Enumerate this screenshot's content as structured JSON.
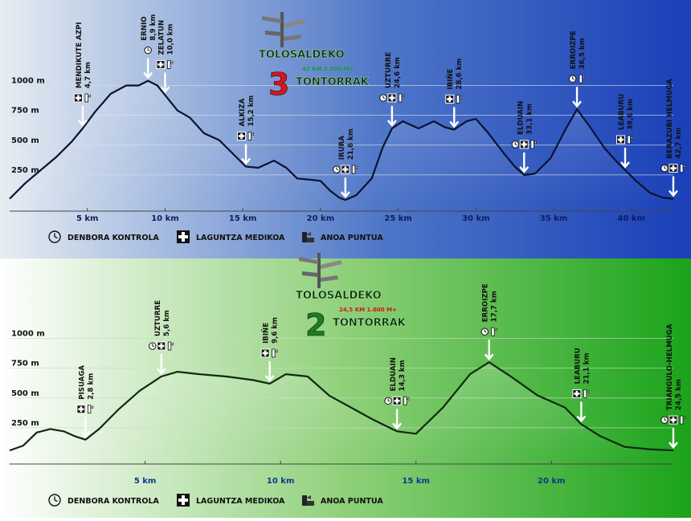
{
  "chart_data": [
    {
      "type": "area",
      "logo_top": "TOLOSALDEKO",
      "logo_num": "3",
      "logo_bottom": "TONTORRAK",
      "logo_sub": "42 KM 2.000 M+",
      "y_ticks": [
        "1000 m",
        "750 m",
        "500 m",
        "250 m"
      ],
      "y_tick_values": [
        1000,
        750,
        500,
        250
      ],
      "x_ticks": [
        "5 km",
        "10 km",
        "15 km",
        "20 km",
        "25 km",
        "30 km",
        "35 km",
        "40 km"
      ],
      "x_tick_values": [
        5,
        10,
        15,
        20,
        25,
        30,
        35,
        40
      ],
      "xlim": [
        0,
        42.7
      ],
      "ylim": [
        0,
        1100
      ],
      "x": [
        0,
        1,
        2,
        3,
        4,
        4.7,
        5.5,
        6.5,
        7.5,
        8.3,
        8.9,
        9.5,
        10,
        10.8,
        11.6,
        12.5,
        13.5,
        14.5,
        15.2,
        16,
        17,
        17.8,
        18.5,
        19.3,
        20,
        20.6,
        21.2,
        21.6,
        22.3,
        23.3,
        24,
        24.6,
        25.3,
        26.3,
        27.3,
        28,
        28.6,
        29.4,
        30,
        30.8,
        31.8,
        32.5,
        33.1,
        33.8,
        34.8,
        35.8,
        36.5,
        37.3,
        38.3,
        39,
        39.6,
        40.3,
        41.2,
        42,
        42.7
      ],
      "y": [
        50,
        180,
        290,
        400,
        530,
        640,
        780,
        930,
        1000,
        1000,
        1040,
        1000,
        920,
        790,
        730,
        600,
        540,
        410,
        320,
        310,
        370,
        310,
        220,
        210,
        200,
        120,
        60,
        40,
        80,
        220,
        480,
        640,
        700,
        640,
        700,
        650,
        630,
        700,
        720,
        600,
        430,
        320,
        250,
        260,
        390,
        640,
        800,
        660,
        470,
        370,
        290,
        200,
        100,
        60,
        50
      ],
      "points": [
        {
          "name": "MENDIKUTE AZPI",
          "dist": "4,7 km",
          "km": 4.7,
          "icons": [
            "medical",
            "anoa"
          ]
        },
        {
          "name": "ERNIO",
          "dist": "8,9 km",
          "km": 8.9,
          "icons": [
            "clock"
          ]
        },
        {
          "name": "ZELATUN",
          "dist": "10,0 km",
          "km": 10.0,
          "icons": [
            "medical",
            "anoa"
          ]
        },
        {
          "name": "ALKIZA",
          "dist": "15,2 km",
          "km": 15.2,
          "icons": [
            "medical",
            "anoa"
          ]
        },
        {
          "name": "IRURA",
          "dist": "21,6 km",
          "km": 21.6,
          "icons": [
            "clock",
            "medical",
            "anoa"
          ]
        },
        {
          "name": "UZTURRE",
          "dist": "24,6 km",
          "km": 24.6,
          "icons": [
            "clock",
            "medical",
            "anoa"
          ]
        },
        {
          "name": "IBIÑE",
          "dist": "28,6 km",
          "km": 28.6,
          "icons": [
            "medical",
            "anoa"
          ]
        },
        {
          "name": "ELDUAIN",
          "dist": "33,1 km",
          "km": 33.1,
          "icons": [
            "clock",
            "medical",
            "anoa"
          ]
        },
        {
          "name": "ERROIZPE",
          "dist": "36,5 km",
          "km": 36.5,
          "icons": [
            "clock",
            "anoa"
          ]
        },
        {
          "name": "LEABURU",
          "dist": "39,6 km",
          "km": 39.6,
          "icons": [
            "medical",
            "anoa"
          ]
        },
        {
          "name": "BERAZUBI HELMUGA",
          "dist": "42,7 km",
          "km": 42.7,
          "icons": [
            "clock",
            "medical",
            "anoa"
          ]
        }
      ],
      "legend": [
        "DENBORA KONTROLA",
        "LAGUNTZA MEDIKOA",
        "ANOA PUNTUA"
      ],
      "colors": {
        "bg_left": "#e7eef2",
        "bg_mid": "#4f77c8",
        "bg_right": "#1a3fb8",
        "line": "#0b1330",
        "grid": "#d8dde8",
        "sub": "#1d9a3a",
        "num": "#d8141c"
      }
    },
    {
      "type": "area",
      "logo_top": "TOLOSALDEKO",
      "logo_num": "2",
      "logo_bottom": "TONTORRAK",
      "logo_sub": "24,5 KM 1.600 M+",
      "y_ticks": [
        "1000 m",
        "750 m",
        "500 m",
        "250 m"
      ],
      "y_tick_values": [
        1000,
        750,
        500,
        250
      ],
      "x_ticks": [
        "5 km",
        "10 km",
        "15 km",
        "20 km"
      ],
      "x_tick_values": [
        5,
        10,
        15,
        20
      ],
      "xlim": [
        0,
        24.5
      ],
      "ylim": [
        0,
        1100
      ],
      "x": [
        0,
        0.5,
        1,
        1.5,
        2,
        2.4,
        2.8,
        3.3,
        4,
        4.8,
        5.6,
        6.2,
        7,
        8,
        9,
        9.6,
        10.2,
        11,
        11.8,
        12.6,
        13.4,
        14.3,
        15,
        16,
        17,
        17.7,
        18.5,
        19.5,
        20.5,
        21.1,
        21.8,
        22.7,
        23.6,
        24.5
      ],
      "y": [
        60,
        100,
        210,
        240,
        220,
        180,
        150,
        240,
        400,
        560,
        680,
        720,
        700,
        680,
        650,
        620,
        700,
        680,
        520,
        420,
        320,
        220,
        200,
        420,
        700,
        800,
        680,
        520,
        420,
        280,
        180,
        90,
        70,
        60
      ],
      "points": [
        {
          "name": "PISUAGA",
          "dist": "2,8 km",
          "km": 2.8,
          "icons": [
            "medical",
            "anoa"
          ]
        },
        {
          "name": "UZTURRE",
          "dist": "5,6 km",
          "km": 5.6,
          "icons": [
            "clock",
            "medical",
            "anoa"
          ]
        },
        {
          "name": "IBIÑE",
          "dist": "9,6 km",
          "km": 9.6,
          "icons": [
            "medical",
            "anoa"
          ]
        },
        {
          "name": "ELDUAIN",
          "dist": "14,3 km",
          "km": 14.3,
          "icons": [
            "clock",
            "medical",
            "anoa"
          ]
        },
        {
          "name": "ERROIZPE",
          "dist": "17,7 km",
          "km": 17.7,
          "icons": [
            "clock",
            "anoa"
          ]
        },
        {
          "name": "LEABURU",
          "dist": "21,1 km",
          "km": 21.1,
          "icons": [
            "medical",
            "anoa"
          ]
        },
        {
          "name": "TRIANGULO-HELMUGA",
          "dist": "24,5 km",
          "km": 24.5,
          "icons": [
            "clock",
            "medical",
            "anoa"
          ]
        }
      ],
      "legend": [
        "DENBORA KONTROLA",
        "LAGUNTZA MEDIKOA",
        "ANOA PUNTUA"
      ],
      "colors": {
        "bg_left": "#ffffff",
        "bg_mid": "#8fd07a",
        "bg_right": "#1aa31a",
        "line": "#0f2a10",
        "grid": "#c9d9c4",
        "sub": "#d8141c",
        "num": "#1c7d22"
      }
    }
  ]
}
